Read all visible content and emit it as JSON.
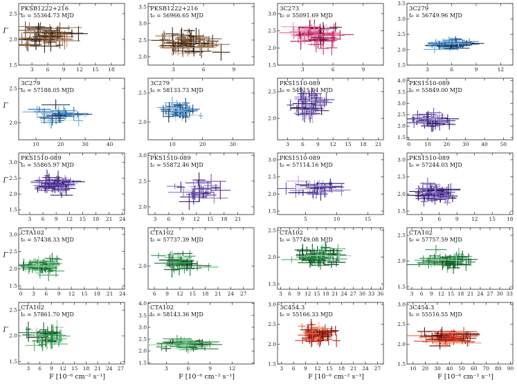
{
  "figure": {
    "ylabel": "Γ",
    "xlabel": "F [10⁻⁶ cm⁻² s⁻¹]"
  },
  "chart_data": [
    {
      "type": "scatter",
      "source": "PKSB1222+216",
      "t0_label": "t₀ = 55364.73 MJD",
      "xticks": [
        "3",
        "6",
        "9",
        "12",
        "15",
        "18"
      ],
      "xlim": [
        0.5,
        20.5
      ],
      "yticks": [
        "1.5",
        "2.0",
        "2.5"
      ],
      "ylim": [
        1.5,
        2.7
      ],
      "palette": [
        "#1e1108",
        "#3a2414",
        "#5c3b22",
        "#7d5433",
        "#9c6e4a",
        "#b88c68"
      ],
      "cx": 6,
      "cy": 2.05,
      "sx": 4.5,
      "sy": 0.2,
      "n": 50,
      "seed": 1
    },
    {
      "type": "scatter",
      "source": "PKSB1222+216",
      "t0_label": "t₀ = 56966.65 MJD",
      "xticks": [
        "3",
        "6",
        "9"
      ],
      "xlim": [
        0.5,
        11
      ],
      "yticks": [
        "2.0",
        "2.5",
        "3.0",
        "3.5"
      ],
      "ylim": [
        1.75,
        3.6
      ],
      "palette": [
        "#1e1108",
        "#3a2414",
        "#5c3b22",
        "#7d5433",
        "#9c6e4a",
        "#b88c68"
      ],
      "cx": 4.5,
      "cy": 2.4,
      "sx": 2.4,
      "sy": 0.3,
      "n": 50,
      "seed": 2
    },
    {
      "type": "scatter",
      "source": "3C273",
      "t0_label": "t₀ = 55091.69 MJD",
      "xticks": [
        "3",
        "6",
        "9"
      ],
      "xlim": [
        0.5,
        11
      ],
      "yticks": [
        "1.5",
        "2.0",
        "2.5",
        "3.0"
      ],
      "ylim": [
        1.5,
        3.3
      ],
      "palette": [
        "#5c0a35",
        "#8b1050",
        "#b8185f",
        "#d6336f",
        "#e8608f",
        "#f291b3"
      ],
      "cx": 4.2,
      "cy": 2.35,
      "sx": 2.2,
      "sy": 0.3,
      "n": 55,
      "seed": 3
    },
    {
      "type": "scatter",
      "source": "3C279",
      "t0_label": "t₀ = 56749.96 MJD",
      "xticks": [
        "3",
        "6",
        "9",
        "12"
      ],
      "xlim": [
        0.5,
        13.5
      ],
      "yticks": [
        "1.5",
        "2.0",
        "2.5",
        "3.0",
        "3.5"
      ],
      "ylim": [
        1.5,
        3.5
      ],
      "palette": [
        "#0d2f55",
        "#15477e",
        "#1f63a8",
        "#3a86c5",
        "#6aaad8",
        "#9cc9e8"
      ],
      "cx": 6,
      "cy": 2.2,
      "sx": 2.6,
      "sy": 0.15,
      "n": 45,
      "seed": 4
    },
    {
      "type": "scatter",
      "source": "3C279",
      "t0_label": "t₀ = 57188.05 MJD",
      "xticks": [
        "10",
        "20",
        "30",
        "40"
      ],
      "xlim": [
        3,
        46
      ],
      "yticks": [
        "2.0",
        "2.5"
      ],
      "ylim": [
        1.75,
        2.65
      ],
      "palette": [
        "#0d2f55",
        "#15477e",
        "#1f63a8",
        "#3a86c5",
        "#6aaad8",
        "#9cc9e8"
      ],
      "cx": 20,
      "cy": 2.1,
      "sx": 9,
      "sy": 0.12,
      "n": 28,
      "seed": 5
    },
    {
      "type": "scatter",
      "source": "3C279",
      "t0_label": "t₀ = 58133.73 MJD",
      "xticks": [
        "10",
        "20",
        "30"
      ],
      "xlim": [
        2,
        37
      ],
      "yticks": [
        "2.0",
        "2.5"
      ],
      "ylim": [
        1.7,
        2.75
      ],
      "palette": [
        "#0d2f55",
        "#15477e",
        "#1f63a8",
        "#3a86c5",
        "#6aaad8",
        "#9cc9e8"
      ],
      "cx": 12,
      "cy": 2.2,
      "sx": 5,
      "sy": 0.12,
      "n": 50,
      "seed": 6
    },
    {
      "type": "scatter",
      "source": "PKS1510-089",
      "t0_label": "t₀ = 54915.04 MJD",
      "xticks": [
        "3",
        "6",
        "9",
        "12",
        "15",
        "18",
        "21"
      ],
      "xlim": [
        1,
        22
      ],
      "yticks": [
        "2.0",
        "2.5"
      ],
      "ylim": [
        1.6,
        2.75
      ],
      "palette": [
        "#2d1660",
        "#3f237f",
        "#54379c",
        "#6e53b4",
        "#8c76c9",
        "#b0a2dc"
      ],
      "cx": 7.5,
      "cy": 2.25,
      "sx": 3,
      "sy": 0.2,
      "n": 40,
      "seed": 7
    },
    {
      "type": "scatter",
      "source": "PKS1510-089",
      "t0_label": "t₀ = 55849.00 MJD",
      "xticks": [
        "0",
        "10",
        "20",
        "30",
        "40",
        "50"
      ],
      "xlim": [
        -1,
        55
      ],
      "yticks": [
        "1.5",
        "2.0",
        "2.5",
        "3.0",
        "3.5",
        "4.0"
      ],
      "ylim": [
        1.4,
        4.1
      ],
      "palette": [
        "#2d1660",
        "#3f237f",
        "#54379c",
        "#6e53b4",
        "#8c76c9",
        "#b0a2dc"
      ],
      "cx": 12,
      "cy": 2.25,
      "sx": 9,
      "sy": 0.3,
      "n": 40,
      "seed": 8
    },
    {
      "type": "scatter",
      "source": "PKS1510-089",
      "t0_label": "t₀ = 55865.97 MJD",
      "xticks": [
        "3",
        "6",
        "9",
        "12",
        "15",
        "18",
        "21",
        "24"
      ],
      "xlim": [
        0.5,
        24.5
      ],
      "yticks": [
        "1.5",
        "2.0",
        "2.5",
        "3.0"
      ],
      "ylim": [
        1.35,
        3.3
      ],
      "palette": [
        "#2d1660",
        "#3f237f",
        "#54379c",
        "#6e53b4",
        "#8c76c9",
        "#b0a2dc"
      ],
      "cx": 9,
      "cy": 2.3,
      "sx": 4,
      "sy": 0.25,
      "n": 55,
      "seed": 9
    },
    {
      "type": "scatter",
      "source": "PKS1510-089",
      "t0_label": "t₀ = 55872.46 MJD",
      "xticks": [
        "3",
        "6",
        "9",
        "12",
        "15",
        "18",
        "21"
      ],
      "xlim": [
        1.5,
        24.5
      ],
      "yticks": [
        "2.0",
        "2.5",
        "3.0"
      ],
      "ylim": [
        1.85,
        3.05
      ],
      "palette": [
        "#2d1660",
        "#3f237f",
        "#54379c",
        "#6e53b4",
        "#8c76c9",
        "#b0a2dc"
      ],
      "cx": 12,
      "cy": 2.3,
      "sx": 5,
      "sy": 0.2,
      "n": 22,
      "seed": 10
    },
    {
      "type": "scatter",
      "source": "PKS1510-089",
      "t0_label": "t₀ = 57114.16 MJD",
      "xticks": [
        "5",
        "10",
        "15"
      ],
      "xlim": [
        0.5,
        17.5
      ],
      "yticks": [
        "1.5",
        "2.0",
        "2.5",
        "3.0"
      ],
      "ylim": [
        1.4,
        3.2
      ],
      "palette": [
        "#2d1660",
        "#3f237f",
        "#54379c",
        "#6e53b4",
        "#8c76c9",
        "#b0a2dc"
      ],
      "cx": 7,
      "cy": 2.2,
      "sx": 3.5,
      "sy": 0.25,
      "n": 30,
      "seed": 11
    },
    {
      "type": "scatter",
      "source": "PKS1510-089",
      "t0_label": "t₀ = 57244.03 MJD",
      "xticks": [
        "3",
        "6",
        "9",
        "12",
        "15",
        "18"
      ],
      "xlim": [
        0.5,
        18.5
      ],
      "yticks": [
        "1.5",
        "2.0",
        "2.5",
        "3.0"
      ],
      "ylim": [
        1.4,
        3.2
      ],
      "palette": [
        "#2d1660",
        "#3f237f",
        "#54379c",
        "#6e53b4",
        "#8c76c9",
        "#b0a2dc"
      ],
      "cx": 5,
      "cy": 2.0,
      "sx": 3,
      "sy": 0.2,
      "n": 60,
      "seed": 12
    },
    {
      "type": "scatter",
      "source": "CTA102",
      "t0_label": "t₀ = 57438.33 MJD",
      "xticks": [
        "0",
        "3",
        "6",
        "9",
        "12",
        "15",
        "18",
        "21",
        "24"
      ],
      "xlim": [
        -0.5,
        24.5
      ],
      "yticks": [
        "1.5",
        "2.0",
        "2.5",
        "3.0"
      ],
      "ylim": [
        1.4,
        3.2
      ],
      "palette": [
        "#0c3d1c",
        "#145a2b",
        "#1f7a3c",
        "#2f9850",
        "#56b46c",
        "#8ecf98"
      ],
      "cx": 5,
      "cy": 2.1,
      "sx": 4,
      "sy": 0.2,
      "n": 55,
      "seed": 13
    },
    {
      "type": "scatter",
      "source": "CTA102",
      "t0_label": "t₀ = 57737.39 MJD",
      "xticks": [
        "6",
        "9",
        "12",
        "15",
        "18",
        "21",
        "24",
        "27"
      ],
      "xlim": [
        4.5,
        29.5
      ],
      "yticks": [
        "2.0"
      ],
      "ylim": [
        1.7,
        2.5
      ],
      "palette": [
        "#0c3d1c",
        "#145a2b",
        "#1f7a3c",
        "#2f9850",
        "#56b46c",
        "#8ecf98"
      ],
      "cx": 13,
      "cy": 2.05,
      "sx": 5,
      "sy": 0.12,
      "n": 32,
      "seed": 14
    },
    {
      "type": "scatter",
      "source": "CTA102",
      "t0_label": "t₀ = 57749.08 MJD",
      "xticks": [
        "3",
        "6",
        "9",
        "12",
        "15",
        "18",
        "21",
        "24",
        "27",
        "30",
        "33",
        "36"
      ],
      "xlim": [
        2,
        37
      ],
      "yticks": [
        "1.5",
        "2.0",
        "2.5"
      ],
      "ylim": [
        1.4,
        2.55
      ],
      "palette": [
        "#0c3d1c",
        "#145a2b",
        "#1f7a3c",
        "#2f9850",
        "#56b46c",
        "#8ecf98"
      ],
      "cx": 16,
      "cy": 2.0,
      "sx": 6,
      "sy": 0.15,
      "n": 60,
      "seed": 15
    },
    {
      "type": "scatter",
      "source": "CTA102",
      "t0_label": "t₀ = 57757.59 MJD",
      "xticks": [
        "3",
        "6",
        "9",
        "12",
        "15",
        "18",
        "21",
        "24",
        "27",
        "30",
        "33"
      ],
      "xlim": [
        1.5,
        34
      ],
      "yticks": [
        "1.5",
        "2.0",
        "2.5"
      ],
      "ylim": [
        1.45,
        2.65
      ],
      "palette": [
        "#0c3d1c",
        "#145a2b",
        "#1f7a3c",
        "#2f9850",
        "#56b46c",
        "#8ecf98"
      ],
      "cx": 15,
      "cy": 2.0,
      "sx": 6,
      "sy": 0.15,
      "n": 55,
      "seed": 16
    },
    {
      "type": "scatter",
      "source": "CTA102",
      "t0_label": "t₀ = 57861.70 MJD",
      "xticks": [
        "3",
        "6",
        "9",
        "12",
        "15",
        "18",
        "21",
        "24",
        "27"
      ],
      "xlim": [
        0.5,
        28
      ],
      "yticks": [
        "1.5",
        "2.0",
        "2.5"
      ],
      "ylim": [
        1.45,
        2.65
      ],
      "palette": [
        "#0c3d1c",
        "#145a2b",
        "#1f7a3c",
        "#2f9850",
        "#56b46c",
        "#8ecf98"
      ],
      "cx": 8,
      "cy": 2.0,
      "sx": 4,
      "sy": 0.18,
      "n": 45,
      "seed": 17
    },
    {
      "type": "scatter",
      "source": "CTA102",
      "t0_label": "t₀ = 58143.36 MJD",
      "xticks": [
        "3",
        "6",
        "9",
        "12"
      ],
      "xlim": [
        0.5,
        15
      ],
      "yticks": [
        "1.5",
        "2.0",
        "2.5",
        "3.0",
        "3.5",
        "4.0"
      ],
      "ylim": [
        1.45,
        4.05
      ],
      "palette": [
        "#0c3d1c",
        "#145a2b",
        "#1f7a3c",
        "#2f9850",
        "#56b46c",
        "#8ecf98"
      ],
      "cx": 6,
      "cy": 2.3,
      "sx": 3,
      "sy": 0.2,
      "n": 45,
      "seed": 18
    },
    {
      "type": "scatter",
      "source": "3C454.3",
      "t0_label": "t₀ = 55166.33 MJD",
      "xticks": [
        "3",
        "6",
        "9",
        "12",
        "15",
        "18",
        "21",
        "24",
        "27"
      ],
      "xlim": [
        2,
        28.5
      ],
      "yticks": [
        "1.5",
        "2.0",
        "2.5",
        "3.0"
      ],
      "ylim": [
        1.5,
        3.05
      ],
      "palette": [
        "#5a0d0b",
        "#8c1510",
        "#b92217",
        "#d93a22",
        "#ec6a45",
        "#f59a7a"
      ],
      "cx": 12,
      "cy": 2.25,
      "sx": 4.5,
      "sy": 0.18,
      "n": 60,
      "seed": 19
    },
    {
      "type": "scatter",
      "source": "3C454.3",
      "t0_label": "t₀ = 55516.55 MJD",
      "xticks": [
        "10",
        "20",
        "30",
        "40",
        "50",
        "60",
        "70",
        "80",
        "90"
      ],
      "xlim": [
        5,
        92
      ],
      "yticks": [
        "1.5",
        "2.0",
        "2.5",
        "3.0"
      ],
      "ylim": [
        1.5,
        3.05
      ],
      "palette": [
        "#5a0d0b",
        "#8c1510",
        "#b92217",
        "#d93a22",
        "#ec6a45",
        "#f59a7a"
      ],
      "cx": 38,
      "cy": 2.15,
      "sx": 18,
      "sy": 0.15,
      "n": 65,
      "seed": 20
    }
  ]
}
